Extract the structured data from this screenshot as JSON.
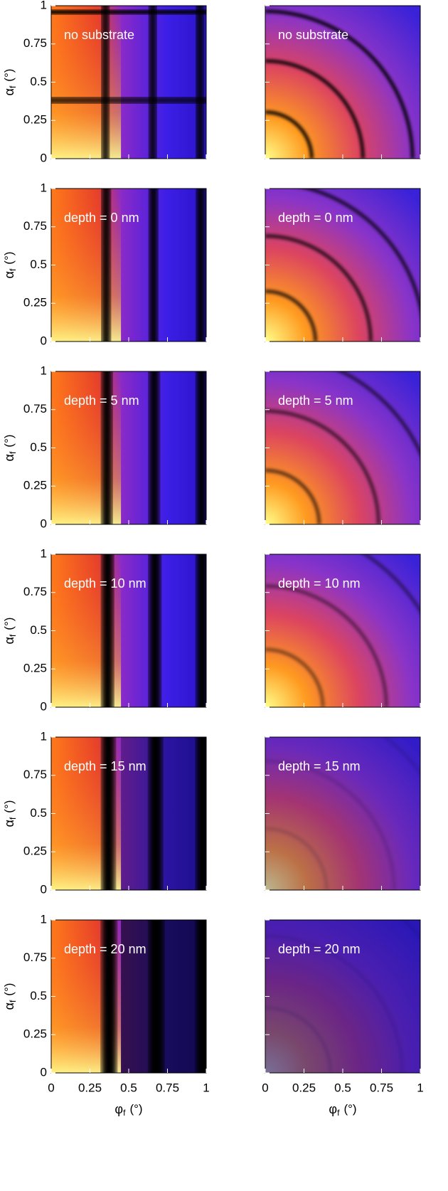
{
  "chart_data": [
    {
      "type": "heatmap",
      "pattern": "stripes",
      "annotation": "no substrate",
      "xlim": [
        0,
        1
      ],
      "ylim": [
        0,
        1
      ],
      "xticks": [
        0,
        0.25,
        0.5,
        0.75,
        1
      ],
      "yticks": [
        0,
        0.25,
        0.5,
        0.75,
        1
      ],
      "ylabel": "α",
      "ylabel_sub": "f",
      "ylabel_unit": "(°)"
    },
    {
      "type": "heatmap",
      "pattern": "rings",
      "annotation": "no substrate",
      "xlim": [
        0,
        1
      ],
      "ylim": [
        0,
        1
      ],
      "xticks": [
        0,
        0.25,
        0.5,
        0.75,
        1
      ],
      "yticks": [
        0,
        0.25,
        0.5,
        0.75,
        1
      ]
    },
    {
      "type": "heatmap",
      "pattern": "stripes",
      "annotation": "depth = 0 nm",
      "xlim": [
        0,
        1
      ],
      "ylim": [
        0,
        1
      ],
      "xticks": [
        0,
        0.25,
        0.5,
        0.75,
        1
      ],
      "yticks": [
        0,
        0.25,
        0.5,
        0.75,
        1
      ],
      "ylabel": "α",
      "ylabel_sub": "f",
      "ylabel_unit": "(°)"
    },
    {
      "type": "heatmap",
      "pattern": "rings",
      "annotation": "depth = 0 nm",
      "xlim": [
        0,
        1
      ],
      "ylim": [
        0,
        1
      ],
      "xticks": [
        0,
        0.25,
        0.5,
        0.75,
        1
      ],
      "yticks": [
        0,
        0.25,
        0.5,
        0.75,
        1
      ]
    },
    {
      "type": "heatmap",
      "pattern": "stripes",
      "annotation": "depth = 5 nm",
      "xlim": [
        0,
        1
      ],
      "ylim": [
        0,
        1
      ],
      "xticks": [
        0,
        0.25,
        0.5,
        0.75,
        1
      ],
      "yticks": [
        0,
        0.25,
        0.5,
        0.75,
        1
      ],
      "ylabel": "α",
      "ylabel_sub": "f",
      "ylabel_unit": "(°)"
    },
    {
      "type": "heatmap",
      "pattern": "rings",
      "annotation": "depth = 5 nm",
      "xlim": [
        0,
        1
      ],
      "ylim": [
        0,
        1
      ],
      "xticks": [
        0,
        0.25,
        0.5,
        0.75,
        1
      ],
      "yticks": [
        0,
        0.25,
        0.5,
        0.75,
        1
      ]
    },
    {
      "type": "heatmap",
      "pattern": "stripes",
      "annotation": "depth = 10 nm",
      "xlim": [
        0,
        1
      ],
      "ylim": [
        0,
        1
      ],
      "xticks": [
        0,
        0.25,
        0.5,
        0.75,
        1
      ],
      "yticks": [
        0,
        0.25,
        0.5,
        0.75,
        1
      ],
      "ylabel": "α",
      "ylabel_sub": "f",
      "ylabel_unit": "(°)"
    },
    {
      "type": "heatmap",
      "pattern": "rings",
      "annotation": "depth = 10 nm",
      "xlim": [
        0,
        1
      ],
      "ylim": [
        0,
        1
      ],
      "xticks": [
        0,
        0.25,
        0.5,
        0.75,
        1
      ],
      "yticks": [
        0,
        0.25,
        0.5,
        0.75,
        1
      ]
    },
    {
      "type": "heatmap",
      "pattern": "stripes",
      "annotation": "depth = 15 nm",
      "xlim": [
        0,
        1
      ],
      "ylim": [
        0,
        1
      ],
      "xticks": [
        0,
        0.25,
        0.5,
        0.75,
        1
      ],
      "yticks": [
        0,
        0.25,
        0.5,
        0.75,
        1
      ],
      "ylabel": "α",
      "ylabel_sub": "f",
      "ylabel_unit": "(°)"
    },
    {
      "type": "heatmap",
      "pattern": "rings",
      "annotation": "depth = 15 nm",
      "xlim": [
        0,
        1
      ],
      "ylim": [
        0,
        1
      ],
      "xticks": [
        0,
        0.25,
        0.5,
        0.75,
        1
      ],
      "yticks": [
        0,
        0.25,
        0.5,
        0.75,
        1
      ]
    },
    {
      "type": "heatmap",
      "pattern": "stripes",
      "annotation": "depth = 20 nm",
      "xlim": [
        0,
        1
      ],
      "ylim": [
        0,
        1
      ],
      "xticks": [
        0,
        0.25,
        0.5,
        0.75,
        1
      ],
      "yticks": [
        0,
        0.25,
        0.5,
        0.75,
        1
      ],
      "ylabel": "α",
      "ylabel_sub": "f",
      "ylabel_unit": "(°)",
      "xlabel": "φ",
      "xlabel_sub": "f",
      "xlabel_unit": "(°)"
    },
    {
      "type": "heatmap",
      "pattern": "rings",
      "annotation": "depth = 20 nm",
      "xlim": [
        0,
        1
      ],
      "ylim": [
        0,
        1
      ],
      "xticks": [
        0,
        0.25,
        0.5,
        0.75,
        1
      ],
      "yticks": [
        0,
        0.25,
        0.5,
        0.75,
        1
      ],
      "xlabel": "φ",
      "xlabel_sub": "f",
      "xlabel_unit": "(°)"
    }
  ]
}
